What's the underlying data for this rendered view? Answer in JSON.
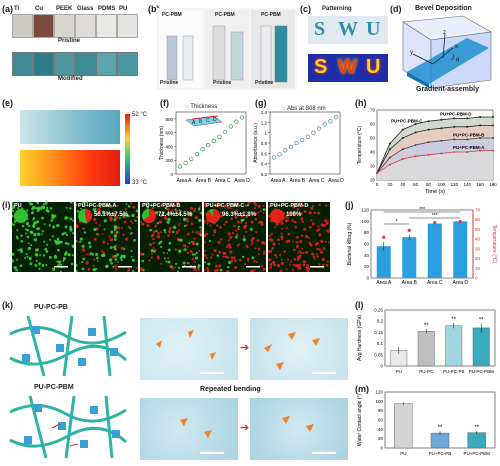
{
  "panels": {
    "a": {
      "label": "(a)",
      "materials": [
        "Ti",
        "Cu",
        "PEEK",
        "Glass",
        "PDMS",
        "PU"
      ],
      "row_pristine": "Pristine",
      "row_modified": "Modified",
      "pristine_colors": [
        "#cdcac3",
        "#7a4a3e",
        "#d9d6cf",
        "#dedcd8",
        "#e8e7e4",
        "#e3e2dc"
      ],
      "modified_colors": [
        "#3f8a94",
        "#2e7a88",
        "#4f95a0",
        "#3e8b95",
        "#5aa4ad",
        "#4b98a2"
      ]
    },
    "b": {
      "label": "(b)",
      "tags": [
        "PC-PBM",
        "PC-PBM",
        "PC-PBM"
      ],
      "pristine": [
        "Pristine",
        "Pristine",
        "Pristine"
      ]
    },
    "c": {
      "label": "(c)",
      "title": "Patterning",
      "letters": [
        "S",
        "W",
        "U"
      ]
    },
    "d": {
      "label": "(d)",
      "title": "Bevel Deposition",
      "subtitle": "Gradient-assembly",
      "axes": {
        "x": "x",
        "y": "y",
        "z": "z",
        "angle": "θ"
      }
    },
    "e": {
      "label": "(e)",
      "temp_high": "52 °C",
      "temp_low": "33 °C"
    },
    "f": {
      "label": "(f)",
      "legend": "Thickness",
      "ylabel": "Thickness (nm)",
      "inset_letters": [
        "A",
        "B",
        "C",
        "D"
      ],
      "categories": [
        "Area A",
        "Area B",
        "Area C",
        "Area D"
      ]
    },
    "g": {
      "label": "(g)",
      "legend": "Abs at 808 nm",
      "ylabel": "Absorbance (a.u.)",
      "categories": [
        "Area A",
        "Area B",
        "Area C",
        "Area D"
      ]
    },
    "h": {
      "label": "(h)",
      "ylabel": "Temperature (°C)",
      "xlabel": "Time (s)",
      "series": [
        "PU+PC-PBM-D",
        "PU+PC-PBM-C",
        "PU+PC-PBM-B",
        "PU+PC-PBM-A"
      ]
    },
    "i": {
      "label": "(i)",
      "images": [
        {
          "name": "PU",
          "value": ""
        },
        {
          "name": "PU+PC-PBM-A",
          "value": "56.1%±7.5%"
        },
        {
          "name": "PU+PC-PBM-B",
          "value": "72.4%±4.5%"
        },
        {
          "name": "PU+PC-PBM-C",
          "value": "96.3%±1.8%"
        },
        {
          "name": "PU+PC-PBM-D",
          "value": "100%"
        }
      ]
    },
    "j": {
      "label": "(j)",
      "ylabel_left": "Bacterial killing (%)",
      "ylabel_right": "Temperature (°C)",
      "categories": [
        "Area A",
        "Area B",
        "Area C",
        "Area D"
      ],
      "sig": [
        "***",
        "*",
        "***"
      ]
    },
    "k": {
      "label": "(k)",
      "structures": [
        "PU-PC-PB",
        "PU-PC-PBM"
      ],
      "caption": "Repeated bending"
    },
    "l": {
      "label": "(l)",
      "ylabel": "Avg Hardness (GPa)",
      "categories": [
        "PU",
        "PU-PC",
        "PU-PC-PB",
        "PU-PC-PBM"
      ],
      "sig": [
        "**",
        "**",
        "**"
      ]
    },
    "m": {
      "label": "(m)",
      "ylabel": "Water Contact angle (°)",
      "categories": [
        "PU",
        "PU+PC-PB",
        "PU+PC-PBM"
      ],
      "sig": [
        "**",
        "**"
      ]
    }
  },
  "chart_data": [
    {
      "type": "scatter",
      "panel": "f",
      "categories": [
        "Area A",
        "Area B",
        "Area C",
        "Area D"
      ],
      "series": [
        {
          "name": "Thickness",
          "values": [
            110,
            160,
            220,
            290,
            360,
            420,
            480,
            540,
            610,
            690,
            760,
            820
          ]
        }
      ],
      "ylim": [
        0,
        900
      ],
      "yticks": [
        0,
        200,
        400,
        600,
        800
      ]
    },
    {
      "type": "scatter",
      "panel": "g",
      "categories": [
        "Area A",
        "Area B",
        "Area C",
        "Area D"
      ],
      "series": [
        {
          "name": "Abs at 808 nm",
          "values": [
            0.52,
            0.58,
            0.66,
            0.72,
            0.8,
            0.86,
            0.92,
            1.0,
            1.08,
            1.16,
            1.22,
            1.3
          ]
        }
      ],
      "ylim": [
        0.2,
        1.4
      ],
      "yticks": [
        0.2,
        0.4,
        0.6,
        0.8,
        1.0,
        1.2,
        1.4
      ]
    },
    {
      "type": "area",
      "panel": "h",
      "x": [
        0,
        20,
        40,
        60,
        80,
        100,
        120,
        140,
        160,
        180
      ],
      "series": [
        {
          "name": "PU+PC-PBM-D",
          "values": [
            25,
            46,
            56,
            60,
            62,
            63,
            64,
            64,
            65,
            65
          ]
        },
        {
          "name": "PU+PC-PBM-C",
          "values": [
            25,
            42,
            50,
            54,
            56,
            57,
            58,
            58,
            59,
            59
          ]
        },
        {
          "name": "PU+PC-PBM-B",
          "values": [
            25,
            36,
            42,
            45,
            47,
            48,
            49,
            49,
            50,
            50
          ]
        },
        {
          "name": "PU+PC-PBM-A",
          "values": [
            25,
            31,
            35,
            37,
            38,
            39,
            40,
            40,
            41,
            41
          ]
        }
      ],
      "xlim": [
        0,
        180
      ],
      "ylim": [
        20,
        70
      ],
      "xticks": [
        0,
        20,
        40,
        60,
        80,
        100,
        120,
        140,
        160,
        180
      ],
      "yticks": [
        20,
        30,
        40,
        50,
        60,
        70
      ]
    },
    {
      "type": "bar",
      "panel": "j",
      "categories": [
        "Area A",
        "Area B",
        "Area C",
        "Area D"
      ],
      "values": [
        56,
        72,
        96,
        100
      ],
      "errors": [
        7.5,
        4.5,
        1.8,
        0
      ],
      "temperature": [
        42,
        49,
        57,
        58
      ],
      "ylim": [
        0,
        120
      ],
      "ylim_right": [
        0,
        70
      ],
      "yticks": [
        0,
        20,
        40,
        60,
        80,
        100,
        120
      ],
      "yticks_right": [
        0,
        10,
        20,
        30,
        40,
        50,
        60,
        70
      ]
    },
    {
      "type": "bar",
      "panel": "l",
      "categories": [
        "PU",
        "PU-PC",
        "PU-PC-PB",
        "PU-PC-PBM"
      ],
      "values": [
        0.07,
        0.155,
        0.18,
        0.17
      ],
      "errors": [
        0.015,
        0.01,
        0.012,
        0.02
      ],
      "colors": [
        "#e8e8e8",
        "#bfbfbf",
        "#9fd6e0",
        "#3aa9bd"
      ],
      "ylim": [
        0,
        0.25
      ],
      "yticks": [
        0.0,
        0.05,
        0.1,
        0.15,
        0.2,
        0.25
      ]
    },
    {
      "type": "bar",
      "panel": "m",
      "categories": [
        "PU",
        "PU+PC-PB",
        "PU+PC-PBM"
      ],
      "values": [
        95,
        32,
        33
      ],
      "errors": [
        3,
        4,
        3
      ],
      "colors": [
        "#d3d3d3",
        "#6ea7d9",
        "#3aa9bd"
      ],
      "ylim": [
        0,
        120
      ],
      "yticks": [
        0,
        20,
        40,
        60,
        80,
        100,
        120
      ]
    }
  ]
}
